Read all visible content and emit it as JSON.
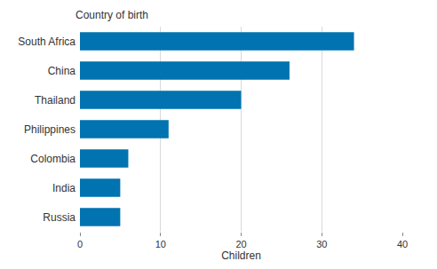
{
  "chart_data": {
    "type": "bar",
    "orientation": "horizontal",
    "ylabel": "Country of birth",
    "xlabel": "Children",
    "categories": [
      "South Africa",
      "China",
      "Thailand",
      "Philippines",
      "Colombia",
      "India",
      "Russia"
    ],
    "values": [
      34,
      26,
      20,
      11,
      6,
      5,
      5
    ],
    "color": "#0073b0",
    "xlim": [
      0,
      40
    ],
    "xticks": [
      0,
      10,
      20,
      30,
      40
    ],
    "grid": true
  }
}
